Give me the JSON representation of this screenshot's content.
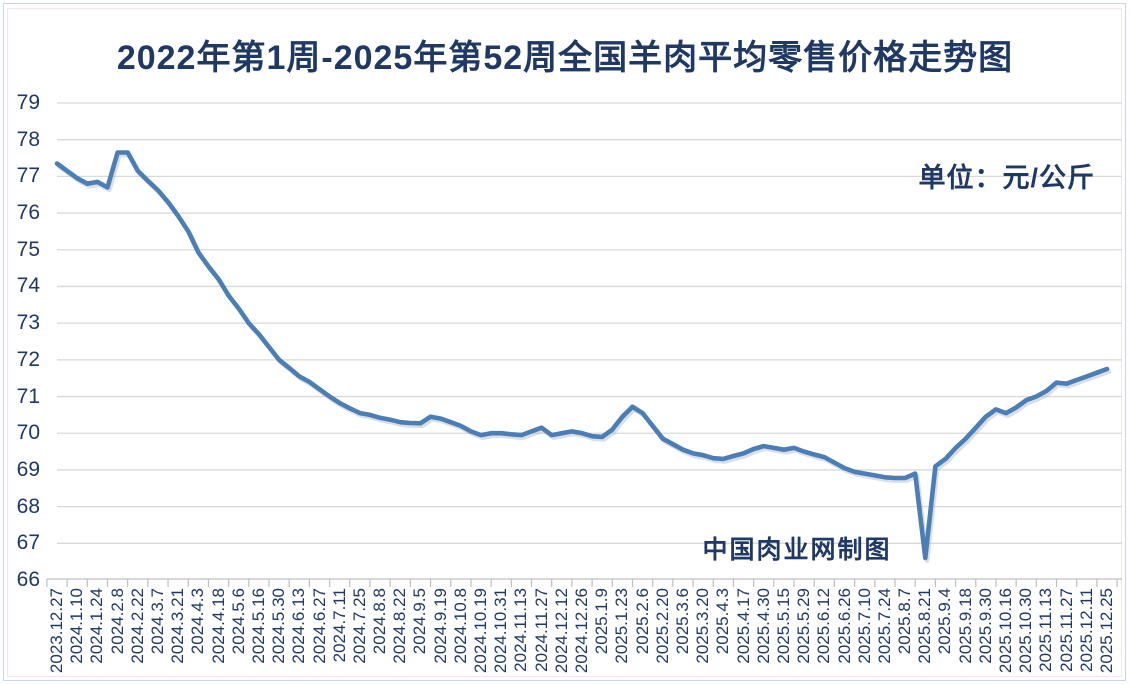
{
  "title": "2022年第1周-2025年第52周全国羊肉平均零售价格走势图",
  "unit_label": "单位：元/公斤",
  "watermark": "中国肉业网制图",
  "colors": {
    "navy": "#1f3864",
    "line": "#4a7eb5",
    "line-shadow": "#a9b8cc",
    "grid": "#d9d9d9",
    "axis": "#bfbfbf"
  },
  "chart_data": {
    "type": "line",
    "title": "2022年第1周-2025年第52周全国羊肉平均零售价格走势图",
    "xlabel": "",
    "ylabel": "元/公斤",
    "ylim": [
      66,
      79
    ],
    "y_ticks": [
      66,
      67,
      68,
      69,
      70,
      71,
      72,
      73,
      74,
      75,
      76,
      77,
      78,
      79
    ],
    "grid": "horizontal",
    "legend": "none",
    "x_labels": [
      "2023.12.27",
      "2024.1.10",
      "2024.1.24",
      "2024.2.8",
      "2024.2.22",
      "2024.3.7",
      "2024.3.21",
      "2024.4.3",
      "2024.4.18",
      "2024.5.6",
      "2024.5.16",
      "2024.5.30",
      "2024.6.13",
      "2024.6.27",
      "2024.7.11",
      "2024.7.25",
      "2024.8.8",
      "2024.8.22",
      "2024.9.5",
      "2024.9.19",
      "2024.10.8",
      "2024.10.19",
      "2024.10.31",
      "2024.11.13",
      "2024.11.27",
      "2024.12.12",
      "2024.12.26",
      "2025.1.9",
      "2025.1.23",
      "2025.2.6",
      "2025.2.20",
      "2025.3.6",
      "2025.3.20",
      "2025.4.3",
      "2025.4.17",
      "2025.4.30",
      "2025.5.15",
      "2025.5.29",
      "2025.6.12",
      "2025.6.26",
      "2025.7.10",
      "2025.7.24",
      "2025.8.7",
      "2025.8.21",
      "2025.9.4",
      "2025.9.18",
      "2025.9.30",
      "2025.10.16",
      "2025.10.30",
      "2025.11.13",
      "2025.11.27",
      "2025.12.11",
      "2025.12.25"
    ],
    "series": [
      {
        "name": "全国羊肉平均零售价格(元/公斤)",
        "note": "weekly points; x_labels mark every second point",
        "values": [
          77.35,
          77.15,
          76.95,
          76.8,
          76.85,
          76.7,
          77.65,
          77.65,
          77.15,
          76.88,
          76.62,
          76.3,
          75.92,
          75.5,
          74.93,
          74.55,
          74.2,
          73.75,
          73.4,
          73.0,
          72.7,
          72.35,
          72.0,
          71.78,
          71.55,
          71.4,
          71.2,
          71.0,
          70.82,
          70.68,
          70.55,
          70.5,
          70.42,
          70.37,
          70.3,
          70.28,
          70.27,
          70.45,
          70.4,
          70.3,
          70.2,
          70.05,
          69.95,
          70.0,
          70.0,
          69.97,
          69.95,
          70.05,
          70.15,
          69.95,
          70.0,
          70.05,
          70.0,
          69.92,
          69.9,
          70.1,
          70.45,
          70.72,
          70.55,
          70.2,
          69.85,
          69.7,
          69.55,
          69.45,
          69.4,
          69.32,
          69.3,
          69.38,
          69.45,
          69.57,
          69.65,
          69.6,
          69.55,
          69.6,
          69.5,
          69.42,
          69.35,
          69.2,
          69.05,
          68.95,
          68.9,
          68.85,
          68.8,
          68.78,
          68.78,
          68.9,
          66.6,
          69.1,
          69.3,
          69.6,
          69.85,
          70.15,
          70.45,
          70.65,
          70.55,
          70.7,
          70.9,
          71.0,
          71.15,
          71.38,
          71.35,
          71.45,
          71.55,
          71.65,
          71.75
        ]
      }
    ]
  }
}
